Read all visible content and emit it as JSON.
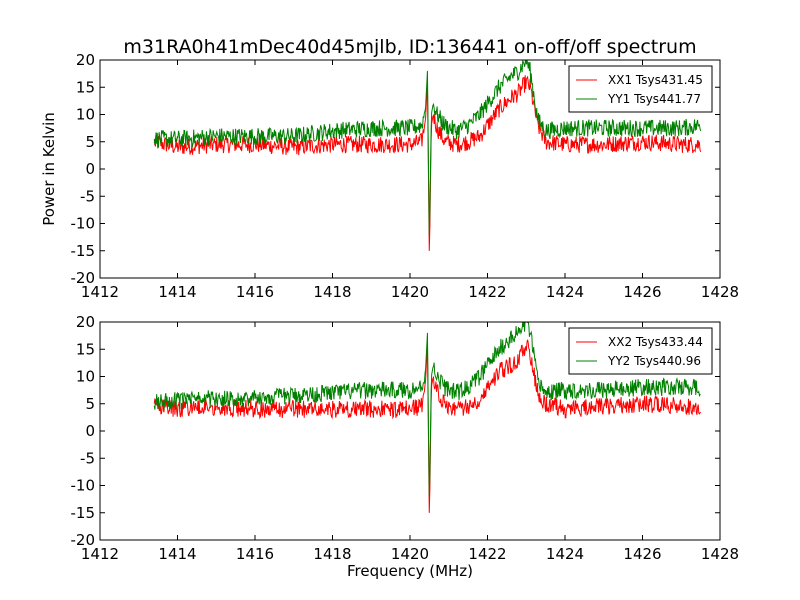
{
  "figure": {
    "title": "m31RA0h41mDec40d45mjlb, ID:136441 on-off/off spectrum"
  },
  "chart_data": [
    {
      "type": "line",
      "title": "m31RA0h41mDec40d45mjlb, ID:136441 on-off/off spectrum",
      "xlabel": "",
      "ylabel": "Power in Kelvin",
      "xlim": [
        1412,
        1428
      ],
      "ylim": [
        -20,
        20
      ],
      "xticks": [
        1412,
        1414,
        1416,
        1418,
        1420,
        1422,
        1424,
        1426,
        1428
      ],
      "yticks": [
        -20,
        -15,
        -10,
        -5,
        0,
        5,
        10,
        15,
        20
      ],
      "legend_position": "top-right",
      "x": [
        1413.4,
        1414.0,
        1415.0,
        1416.0,
        1417.0,
        1418.0,
        1419.0,
        1420.0,
        1420.3,
        1420.4,
        1420.45,
        1420.5,
        1420.55,
        1420.6,
        1420.7,
        1420.9,
        1421.2,
        1421.5,
        1421.8,
        1422.0,
        1422.3,
        1422.6,
        1422.8,
        1423.0,
        1423.1,
        1423.3,
        1423.5,
        1424.0,
        1425.0,
        1426.0,
        1427.0,
        1427.5
      ],
      "series": [
        {
          "name": "XX1 Tsys431.45",
          "color": "#ff0000",
          "values": [
            5,
            4,
            4.5,
            4.5,
            4,
            4.5,
            4.5,
            4.5,
            5,
            9,
            16,
            -17,
            8,
            10,
            7.5,
            5,
            4.5,
            5,
            6,
            8,
            11,
            13,
            14,
            16,
            15,
            8,
            5,
            4.5,
            4.5,
            5,
            4.5,
            4.5
          ]
        },
        {
          "name": "YY1 Tsys441.77",
          "color": "#008000",
          "values": [
            5.5,
            5.5,
            6,
            6,
            6,
            7,
            7.5,
            7.5,
            8,
            11,
            18,
            -14,
            10,
            12,
            10,
            8,
            7,
            8,
            10,
            12,
            15,
            17,
            18,
            20,
            18,
            9,
            7,
            7.5,
            7.5,
            7.5,
            7.5,
            8
          ]
        }
      ]
    },
    {
      "type": "line",
      "title": "",
      "xlabel": "Frequency (MHz)",
      "ylabel": "",
      "xlim": [
        1412,
        1428
      ],
      "ylim": [
        -20,
        20
      ],
      "xticks": [
        1412,
        1414,
        1416,
        1418,
        1420,
        1422,
        1424,
        1426,
        1428
      ],
      "yticks": [
        -20,
        -15,
        -10,
        -5,
        0,
        5,
        10,
        15,
        20
      ],
      "legend_position": "top-right",
      "x": [
        1413.4,
        1414.0,
        1415.0,
        1416.0,
        1417.0,
        1418.0,
        1419.0,
        1420.0,
        1420.3,
        1420.4,
        1420.45,
        1420.5,
        1420.55,
        1420.6,
        1420.7,
        1420.9,
        1421.2,
        1421.5,
        1421.8,
        1422.0,
        1422.3,
        1422.6,
        1422.8,
        1423.0,
        1423.1,
        1423.3,
        1423.5,
        1424.0,
        1425.0,
        1426.0,
        1427.0,
        1427.5
      ],
      "series": [
        {
          "name": "XX2 Tsys433.44",
          "color": "#ff0000",
          "values": [
            5,
            4,
            4.5,
            4,
            4,
            4,
            4,
            4,
            4.5,
            9,
            16,
            -17,
            8,
            10,
            7.5,
            5,
            4,
            4.5,
            6,
            8,
            11,
            12,
            13,
            16,
            14,
            7,
            5,
            4,
            4.5,
            5,
            4.5,
            4.5
          ]
        },
        {
          "name": "YY2 Tsys440.96",
          "color": "#008000",
          "values": [
            5.5,
            5.5,
            6,
            6,
            6.5,
            7,
            7.5,
            7.5,
            8,
            11,
            18,
            -14,
            10,
            12,
            10,
            8,
            7,
            8,
            10,
            12,
            15,
            17,
            18,
            20,
            18,
            9,
            7,
            7.5,
            7.5,
            8,
            8,
            8
          ]
        }
      ]
    }
  ]
}
